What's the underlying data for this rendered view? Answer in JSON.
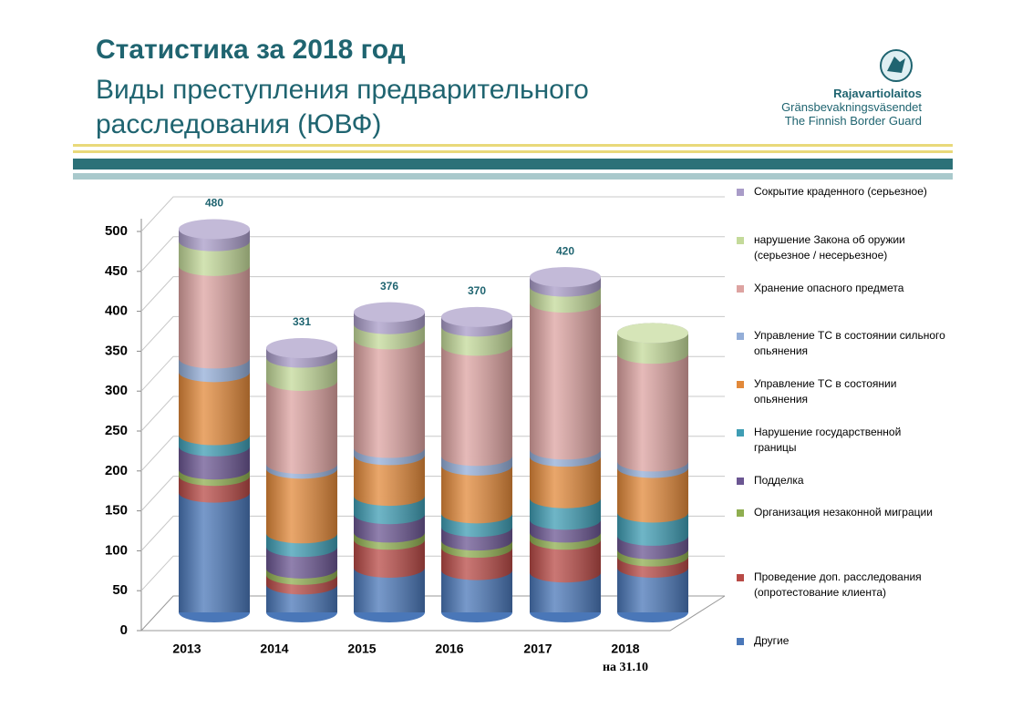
{
  "header": {
    "title": "Статистика за 2018 год",
    "subtitle": "Виды преступления предварительного расследования (ЮВФ)"
  },
  "logo": {
    "line1": "Rajavartiolaitos",
    "line2": "Gränsbevakningsväsendet",
    "line3": "The Finnish Border Guard"
  },
  "chart_data": {
    "type": "bar",
    "stacked": true,
    "categories": [
      "2013",
      "2014",
      "2015",
      "2016",
      "2017",
      "2018"
    ],
    "category_note": "на 31.10",
    "total_labels": [
      480,
      331,
      376,
      370,
      420,
      null
    ],
    "ylim": [
      0,
      500
    ],
    "yticks": [
      0,
      50,
      100,
      150,
      200,
      250,
      300,
      350,
      400,
      450,
      500
    ],
    "grid": true,
    "series": [
      {
        "name": "Другие",
        "color": "#4a77b8",
        "values": [
          150,
          35,
          56,
          53,
          50,
          56
        ]
      },
      {
        "name": "Проведение доп. расследования (опротестование клиента)",
        "color": "#b84a46",
        "values": [
          21,
          12,
          35,
          28,
          41,
          14
        ]
      },
      {
        "name": "Организация незаконной миграции",
        "color": "#8fae50",
        "values": [
          8,
          8,
          9,
          9,
          9,
          9
        ]
      },
      {
        "name": " Подделка",
        "color": "#6b5692",
        "values": [
          29,
          27,
          23,
          17,
          16,
          17
        ]
      },
      {
        "name": "Нарушение государственной границы",
        "color": "#3f9db4",
        "values": [
          14,
          17,
          23,
          17,
          27,
          29
        ]
      },
      {
        "name": "Управление ТС в состоянии опьянения",
        "color": "#e2893a",
        "values": [
          79,
          81,
          51,
          60,
          52,
          56
        ]
      },
      {
        "name": "Управление ТС в состоянии сильного опьянения",
        "color": "#94aed8",
        "values": [
          17,
          6,
          9,
          12,
          9,
          8
        ]
      },
      {
        "name": "Хранение опасного предмета",
        "color": "#dda3a1",
        "values": [
          116,
          104,
          136,
          138,
          184,
          135
        ]
      },
      {
        "name": "нарушение Закона об оружии (серьезное / несерьезное)",
        "color": "#c4da9a",
        "values": [
          31,
          29,
          19,
          24,
          20,
          26
        ]
      },
      {
        "name": "Сокрытие краденного (серьезное)",
        "color": "#a99cc8",
        "values": [
          15,
          12,
          15,
          12,
          12,
          0
        ]
      }
    ]
  }
}
